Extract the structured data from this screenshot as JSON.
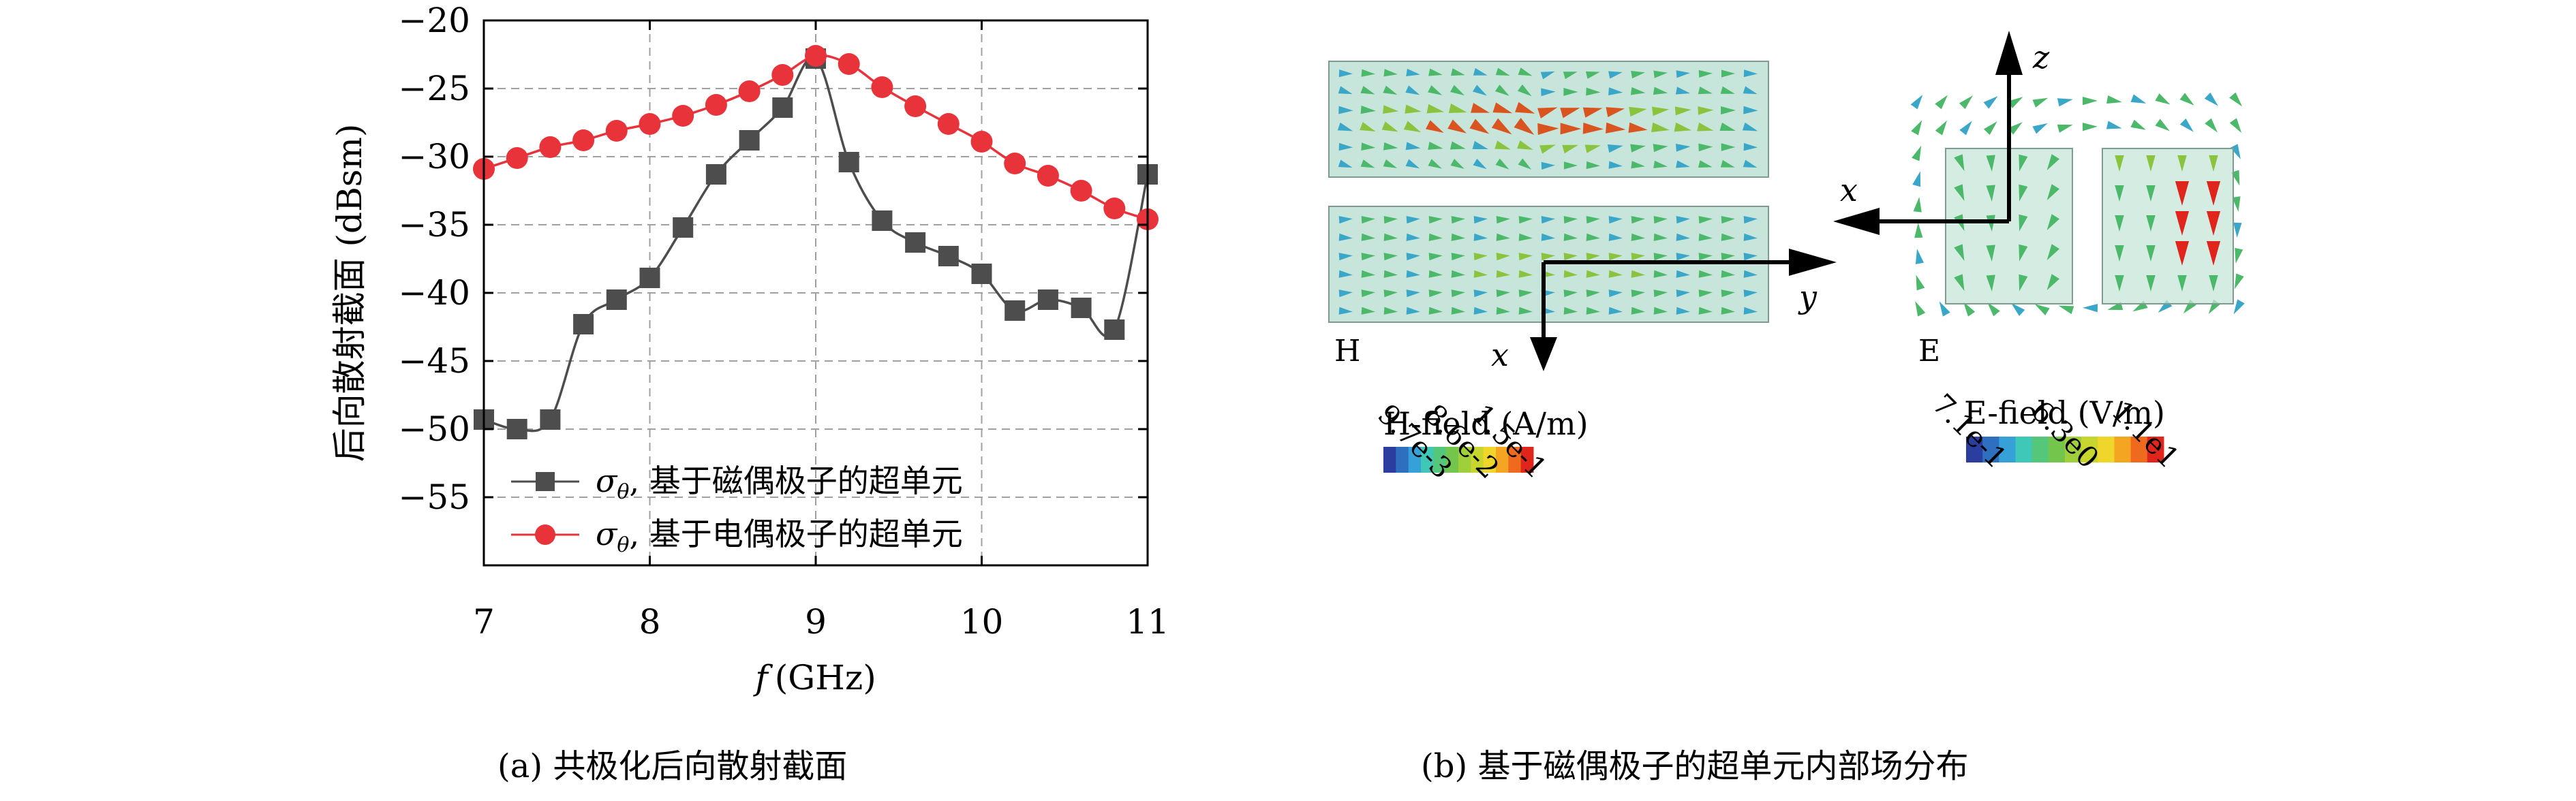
{
  "panel_a": {
    "caption": "(a) 共极化后向散射截面",
    "chart_data": {
      "type": "line",
      "ylabel": "后向散射截面 (dBsm)",
      "xlabel_var": "f",
      "xlabel_unit": "(GHz)",
      "xlim": [
        7,
        11
      ],
      "ylim": [
        -60,
        -20
      ],
      "x_ticks": [
        7,
        8,
        9,
        10,
        11
      ],
      "y_ticks": [
        -20,
        -25,
        -30,
        -35,
        -40,
        -45,
        -50,
        -55
      ],
      "y_tick_labels": [
        "−20",
        "−25",
        "−30",
        "−35",
        "−40",
        "−45",
        "−50",
        "−55"
      ],
      "grid": true,
      "legend_placement": "bottom-right",
      "series": [
        {
          "name": "σθ, 基于磁偶极子的超单元",
          "name_sym": "σ",
          "name_sub": "θ",
          "name_text": ", 基于磁偶极子的超单元",
          "marker": "square",
          "color": "#4d4d4d",
          "x": [
            7.0,
            7.2,
            7.4,
            7.6,
            7.8,
            8.0,
            8.2,
            8.4,
            8.6,
            8.8,
            9.0,
            9.2,
            9.4,
            9.6,
            9.8,
            10.0,
            10.2,
            10.4,
            10.6,
            10.8,
            11.0
          ],
          "values": [
            -49.3,
            -50.0,
            -49.3,
            -42.3,
            -40.5,
            -38.9,
            -35.2,
            -31.3,
            -28.8,
            -26.4,
            -22.8,
            -30.4,
            -34.7,
            -36.3,
            -37.3,
            -38.6,
            -41.3,
            -40.5,
            -41.1,
            -42.7,
            -31.3
          ]
        },
        {
          "name": "σθ, 基于电偶极子的超单元",
          "name_sym": "σ",
          "name_sub": "θ",
          "name_text": ", 基于电偶极子的超单元",
          "marker": "circle",
          "color": "#e8333a",
          "x": [
            7.0,
            7.2,
            7.4,
            7.6,
            7.8,
            8.0,
            8.2,
            8.4,
            8.6,
            8.8,
            9.0,
            9.2,
            9.4,
            9.6,
            9.8,
            10.0,
            10.2,
            10.4,
            10.6,
            10.8,
            11.0
          ],
          "values": [
            -30.9,
            -30.1,
            -29.3,
            -28.8,
            -28.1,
            -27.6,
            -27.0,
            -26.2,
            -25.2,
            -24.0,
            -22.6,
            -23.2,
            -24.9,
            -26.3,
            -27.6,
            -28.9,
            -30.5,
            -31.4,
            -32.5,
            -33.8,
            -34.6
          ]
        }
      ]
    }
  },
  "panel_b": {
    "caption": "(b) 基于磁偶极子的超单元内部场分布",
    "h_label": "H",
    "e_label": "E",
    "axes": {
      "x": "x",
      "y": "y",
      "z": "z"
    },
    "h_colorbar": {
      "title": "H-field (A/m)",
      "ticks": [
        "9.7e-3",
        "8.6e-2",
        "1.5e-1"
      ]
    },
    "e_colorbar": {
      "title": "E-field (V/m)",
      "ticks": [
        "7.1e-1",
        "6.3e0",
        "1.1e1"
      ]
    },
    "colormap": [
      "#2b3d9e",
      "#2f6fc0",
      "#36a0d8",
      "#3fc7b8",
      "#55c77a",
      "#73c64b",
      "#9fcf3a",
      "#c9d52f",
      "#f0d62a",
      "#f4a522",
      "#ef6a1e",
      "#e0261c"
    ]
  }
}
